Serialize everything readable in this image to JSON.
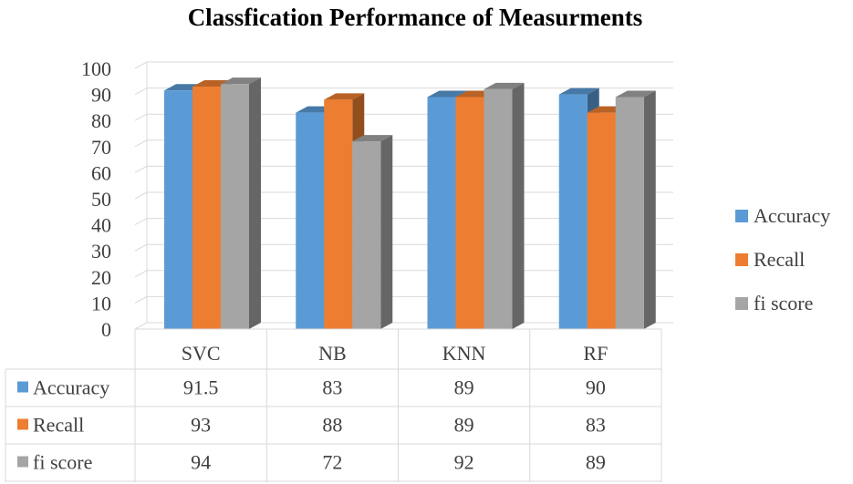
{
  "chart_data": {
    "type": "bar",
    "title": "Classfication Performance of Measurments",
    "categories": [
      "SVC",
      "NB",
      "KNN",
      "RF"
    ],
    "series": [
      {
        "name": "Accuracy",
        "values": [
          91.5,
          83,
          89,
          90
        ],
        "color": "#5B9BD5"
      },
      {
        "name": "Recall",
        "values": [
          93,
          88,
          89,
          83
        ],
        "color": "#ED7D31"
      },
      {
        "name": "fi score",
        "values": [
          94,
          72,
          92,
          89
        ],
        "color": "#A5A5A5"
      }
    ],
    "y_ticks": [
      0,
      10,
      20,
      30,
      40,
      50,
      60,
      70,
      80,
      90,
      100
    ],
    "ylim": [
      0,
      100
    ],
    "grid": true,
    "legend_position": "right",
    "data_table": true,
    "data_table_rows": [
      {
        "label": "Accuracy",
        "values": [
          "91.5",
          "83",
          "89",
          "90"
        ]
      },
      {
        "label": "Recall",
        "values": [
          "93",
          "88",
          "89",
          "83"
        ]
      },
      {
        "label": "fi score",
        "values": [
          "94",
          "72",
          "92",
          "89"
        ]
      }
    ]
  }
}
